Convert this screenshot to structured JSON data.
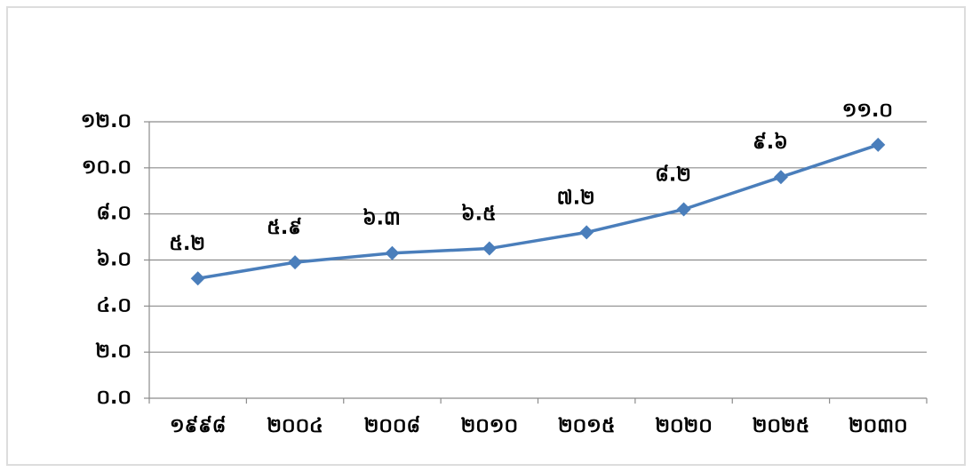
{
  "chart_data": {
    "type": "line",
    "categories": [
      "១៩៩៨",
      "២០០៤",
      "២០០៨",
      "២០១០",
      "២០១៥",
      "២០២០",
      "២០២៥",
      "២០៣០"
    ],
    "values": [
      5.2,
      5.9,
      6.3,
      6.5,
      7.2,
      8.2,
      9.6,
      11.0
    ],
    "value_labels": [
      "៥.២",
      "៥.៩",
      "៦.៣",
      "៦.៥",
      "៧.២",
      "៨.២",
      "៩.៦",
      "១១.០"
    ],
    "color": "#4a7ebb",
    "ylim": [
      0,
      12
    ],
    "yticks": [
      {
        "value": 0,
        "label": "០.០"
      },
      {
        "value": 2,
        "label": "២.០"
      },
      {
        "value": 4,
        "label": "៤.០"
      },
      {
        "value": 6,
        "label": "៦.០"
      },
      {
        "value": 8,
        "label": "៨.០"
      },
      {
        "value": 10,
        "label": "១០.០"
      },
      {
        "value": 12,
        "label": "១២.០"
      }
    ],
    "grid": true
  }
}
